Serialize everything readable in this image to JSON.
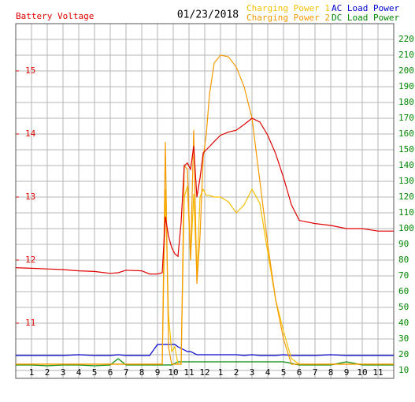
{
  "chart_data": {
    "type": "line",
    "title": "Battery Voltage",
    "date": "01/23/2018",
    "grid": true,
    "x": [
      0,
      1,
      2,
      3,
      4,
      5,
      6,
      6.5,
      7,
      8,
      8.5,
      9,
      9.3,
      9.5,
      9.7,
      9.9,
      10.1,
      10.3,
      10.5,
      10.7,
      10.9,
      11.1,
      11.3,
      11.5,
      11.7,
      11.9,
      12.1,
      12.3,
      12.6,
      13,
      13.5,
      14,
      14.5,
      15,
      15.5,
      16,
      16.5,
      17,
      17.5,
      18,
      19,
      20,
      21,
      22,
      23,
      24
    ],
    "xlim": [
      0,
      24
    ],
    "xticks": [
      1,
      2,
      3,
      4,
      5,
      6,
      7,
      8,
      9,
      10,
      11,
      12,
      {
        "value": 13,
        "label": "1"
      },
      {
        "value": 14,
        "label": "2"
      },
      {
        "value": 15,
        "label": "3"
      },
      {
        "value": 16,
        "label": "4"
      },
      {
        "value": 17,
        "label": "5"
      },
      {
        "value": 18,
        "label": "6"
      },
      {
        "value": 19,
        "label": "7"
      },
      {
        "value": 20,
        "label": "8"
      },
      {
        "value": 21,
        "label": "9"
      },
      {
        "value": 22,
        "label": "10"
      },
      {
        "value": 23,
        "label": "11"
      }
    ],
    "ylim": [
      10.125,
      15.75
    ],
    "yticks": [
      11,
      12,
      13,
      14,
      15
    ],
    "y2lim": [
      5,
      230
    ],
    "y2ticks": [
      10,
      20,
      30,
      40,
      50,
      60,
      70,
      80,
      90,
      100,
      110,
      120,
      130,
      140,
      150,
      160,
      170,
      180,
      190,
      200,
      210,
      220
    ],
    "series": [
      {
        "name": "Battery Voltage",
        "color": "#e00000",
        "axis": "y",
        "values": [
          11.88,
          11.87,
          11.86,
          11.85,
          11.83,
          11.82,
          11.79,
          11.8,
          11.84,
          11.83,
          11.78,
          11.78,
          11.8,
          12.69,
          12.38,
          12.2,
          12.1,
          12.06,
          12.6,
          13.5,
          13.54,
          13.44,
          13.81,
          13.0,
          13.3,
          13.7,
          13.75,
          13.8,
          13.88,
          13.98,
          14.03,
          14.06,
          14.15,
          14.25,
          14.19,
          13.98,
          13.69,
          13.31,
          12.88,
          12.63,
          12.58,
          12.55,
          12.5,
          12.5,
          12.46,
          12.46
        ]
      },
      {
        "name": "Charging Power 1",
        "color": "#f5c000",
        "axis": "y2",
        "values": [
          14,
          14,
          14,
          14,
          14,
          14,
          14,
          14,
          14,
          14,
          14,
          14,
          14,
          125,
          45,
          22,
          25,
          14,
          14,
          120,
          127,
          80,
          122,
          70,
          120,
          125,
          121,
          121,
          120,
          120,
          117,
          110,
          115,
          125,
          116,
          85,
          55,
          35,
          17.5,
          14,
          14,
          14,
          14,
          14,
          14,
          14
        ]
      },
      {
        "name": "Charging Power 2",
        "color": "#f59a00",
        "axis": "y2",
        "values": [
          14,
          14,
          14,
          14,
          14,
          14,
          14,
          14,
          14,
          14,
          14,
          14,
          14,
          155,
          25,
          14,
          14,
          14,
          14,
          140,
          137.5,
          80,
          162.5,
          65,
          95,
          145,
          160,
          185,
          205,
          210,
          209,
          202.5,
          190,
          170,
          130,
          90,
          55,
          30,
          14,
          14,
          14,
          14,
          14,
          14,
          14,
          14
        ]
      },
      {
        "name": "AC Load Power",
        "color": "#0000d0",
        "axis": "y2",
        "values": [
          19.5,
          19.5,
          19.5,
          19.5,
          20,
          19.5,
          19.5,
          20,
          19.5,
          19.5,
          19.5,
          26.5,
          26.5,
          26.5,
          26.5,
          26.5,
          26.5,
          25,
          24,
          23,
          22,
          22,
          21,
          20,
          20,
          20,
          20,
          20,
          20,
          20,
          20,
          20,
          19.5,
          20,
          19.5,
          19.5,
          19.5,
          20,
          19.5,
          19.5,
          19.5,
          20,
          19.5,
          19.5,
          19.5,
          19.5
        ]
      },
      {
        "name": "DC Load Power",
        "color": "#008800",
        "axis": "y2",
        "values": [
          13.5,
          13.5,
          13,
          13.5,
          13.5,
          13,
          13.5,
          17.5,
          13.5,
          13.5,
          13.5,
          13.5,
          13.5,
          13.5,
          13.5,
          13.5,
          14.5,
          15.5,
          15.5,
          15.5,
          15.5,
          15.5,
          15.5,
          15.5,
          15.5,
          15.5,
          15.5,
          15.5,
          15.5,
          15.5,
          15.5,
          15.5,
          15.5,
          15.5,
          15.5,
          15.5,
          15.5,
          15.5,
          14.5,
          13.5,
          13.5,
          13.5,
          15.5,
          13.5,
          13.5,
          13.5
        ]
      }
    ]
  }
}
